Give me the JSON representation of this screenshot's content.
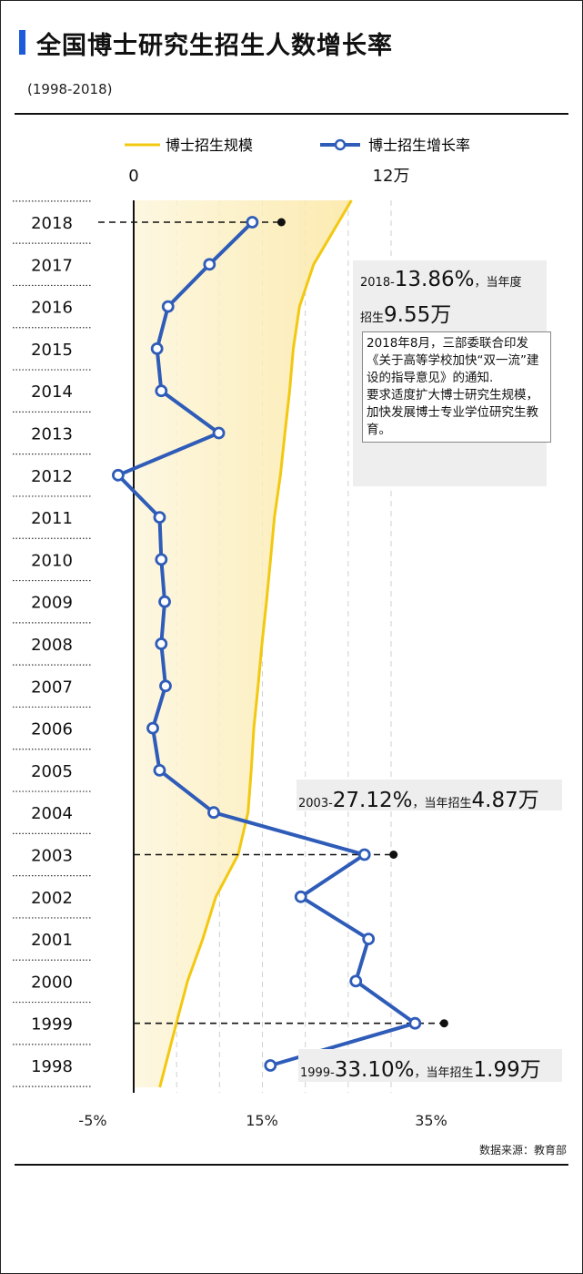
{
  "header": {
    "title": "全国博士研究生招生人数增长率",
    "subtitle": "(1998-2018)"
  },
  "legend": {
    "scale_label": "博士招生规模",
    "growth_label": "博士招生增长率"
  },
  "colors": {
    "accent": "#1e5bd8",
    "growth_line": "#2e5cb8",
    "scale_line": "#f2c811",
    "scale_fill": "#fdf0c4"
  },
  "chart_data": {
    "type": "line",
    "orientation": "horizontal",
    "categories": [
      "2018",
      "2017",
      "2016",
      "2015",
      "2014",
      "2013",
      "2012",
      "2011",
      "2010",
      "2009",
      "2008",
      "2007",
      "2006",
      "2005",
      "2004",
      "2003",
      "2002",
      "2001",
      "2000",
      "1999",
      "1998"
    ],
    "series": [
      {
        "name": "博士招生增长率",
        "unit": "%",
        "values": [
          13.86,
          8.8,
          3.9,
          2.6,
          3.1,
          9.9,
          -2.0,
          2.9,
          3.1,
          3.5,
          3.1,
          3.6,
          2.1,
          2.9,
          9.3,
          27.12,
          19.6,
          27.6,
          26.1,
          33.1,
          16.0
        ]
      },
      {
        "name": "博士招生规模",
        "unit": "万",
        "values": [
          9.55,
          8.39,
          7.73,
          7.44,
          7.27,
          7.05,
          6.84,
          6.56,
          6.38,
          6.19,
          5.98,
          5.8,
          5.6,
          5.48,
          5.33,
          4.87,
          3.83,
          3.22,
          2.51,
          1.99,
          1.48
        ]
      }
    ],
    "growth_axis": {
      "ticks": [
        "-5%",
        "15%",
        "35%"
      ],
      "tick_values": [
        -5,
        15,
        35
      ],
      "range": [
        -5,
        35
      ]
    },
    "scale_axis": {
      "ticks": [
        "0",
        "12万"
      ],
      "tick_values": [
        0,
        12
      ],
      "range": [
        0,
        12
      ]
    },
    "highlighted_years": [
      "2018",
      "2003",
      "1999"
    ]
  },
  "annotations": {
    "a2018": {
      "year": "2018-",
      "rate": "13.86%",
      "tail1": "，当年度",
      "line2_pre": "招生",
      "count": "9.55万"
    },
    "note": "2018年8月，三部委联合印发《关于高等学校加快“双一流”建设的指导意见》的通知.\n要求适度扩大博士研究生规模，加快发展博士专业学位研究生教育。",
    "a2003": {
      "year": "2003-",
      "rate": "27.12%",
      "mid": "，当年招生",
      "count": "4.87万"
    },
    "a1999": {
      "year": "1999-",
      "rate": "33.10%",
      "mid": "，当年招生",
      "count": "1.99万"
    }
  },
  "footer": {
    "source": "数据来源：教育部"
  }
}
